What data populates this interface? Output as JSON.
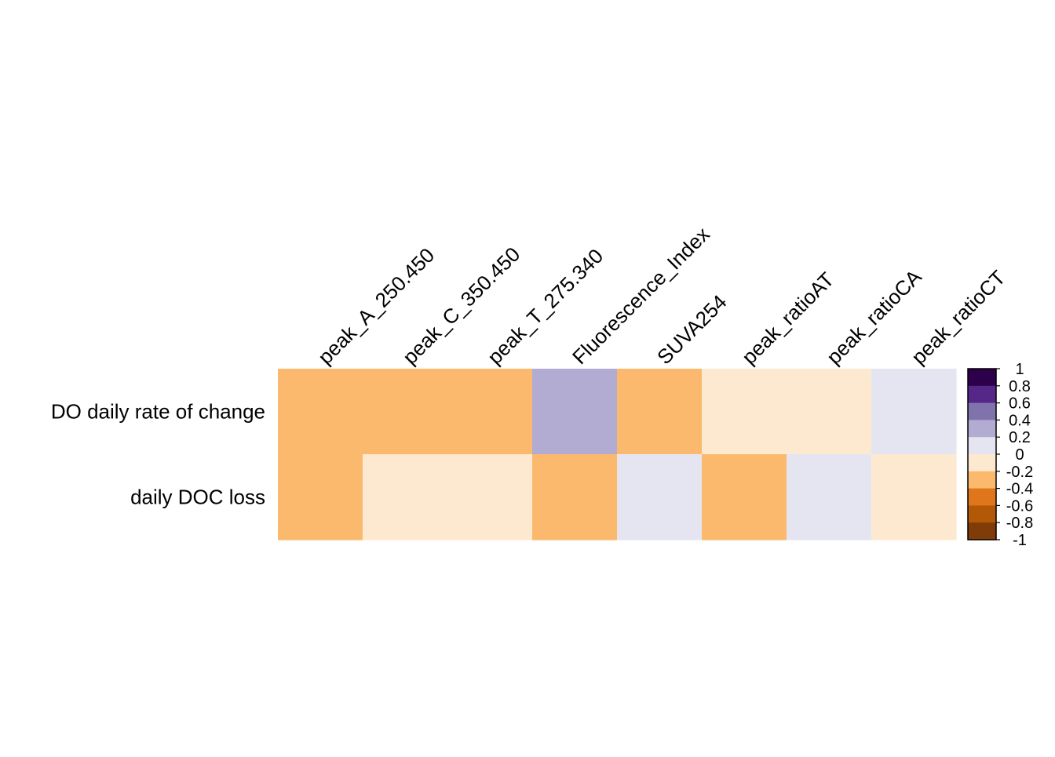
{
  "chart_data": {
    "type": "heatmap",
    "title": "",
    "xlabel": "",
    "ylabel": "",
    "x_labels": [
      "peak_A_250.450",
      "peak_C_350.450",
      "peak_T_275.340",
      "Fluorescence_Index",
      "SUVA254",
      "peak_ratioAT",
      "peak_ratioCA",
      "peak_ratioCT"
    ],
    "y_labels": [
      "DO daily rate of change",
      "daily DOC loss"
    ],
    "values": [
      [
        -0.3,
        -0.3,
        -0.3,
        0.3,
        -0.3,
        -0.1,
        -0.1,
        0.1
      ],
      [
        -0.3,
        -0.1,
        -0.1,
        -0.3,
        0.1,
        -0.3,
        0.1,
        -0.1
      ]
    ],
    "value_range": [
      -1,
      1
    ],
    "colorbar": {
      "ticks": [
        "1",
        "0.8",
        "0.6",
        "0.4",
        "0.2",
        "0",
        "-0.2",
        "-0.4",
        "-0.6",
        "-0.8",
        "-1"
      ],
      "bins": [
        {
          "from": 0.8,
          "to": 1.0,
          "color": "#2d004b"
        },
        {
          "from": 0.6,
          "to": 0.8,
          "color": "#542788"
        },
        {
          "from": 0.4,
          "to": 0.6,
          "color": "#8073ac"
        },
        {
          "from": 0.2,
          "to": 0.4,
          "color": "#b2abd2"
        },
        {
          "from": 0.0,
          "to": 0.2,
          "color": "#e5e5f1"
        },
        {
          "from": -0.2,
          "to": 0.0,
          "color": "#fde9cf"
        },
        {
          "from": -0.4,
          "to": -0.2,
          "color": "#fbb96e"
        },
        {
          "from": -0.6,
          "to": -0.4,
          "color": "#e0761c"
        },
        {
          "from": -0.8,
          "to": -0.6,
          "color": "#b35806"
        },
        {
          "from": -1.0,
          "to": -0.8,
          "color": "#7f3b08"
        }
      ],
      "placement": "right"
    },
    "grid": false
  }
}
